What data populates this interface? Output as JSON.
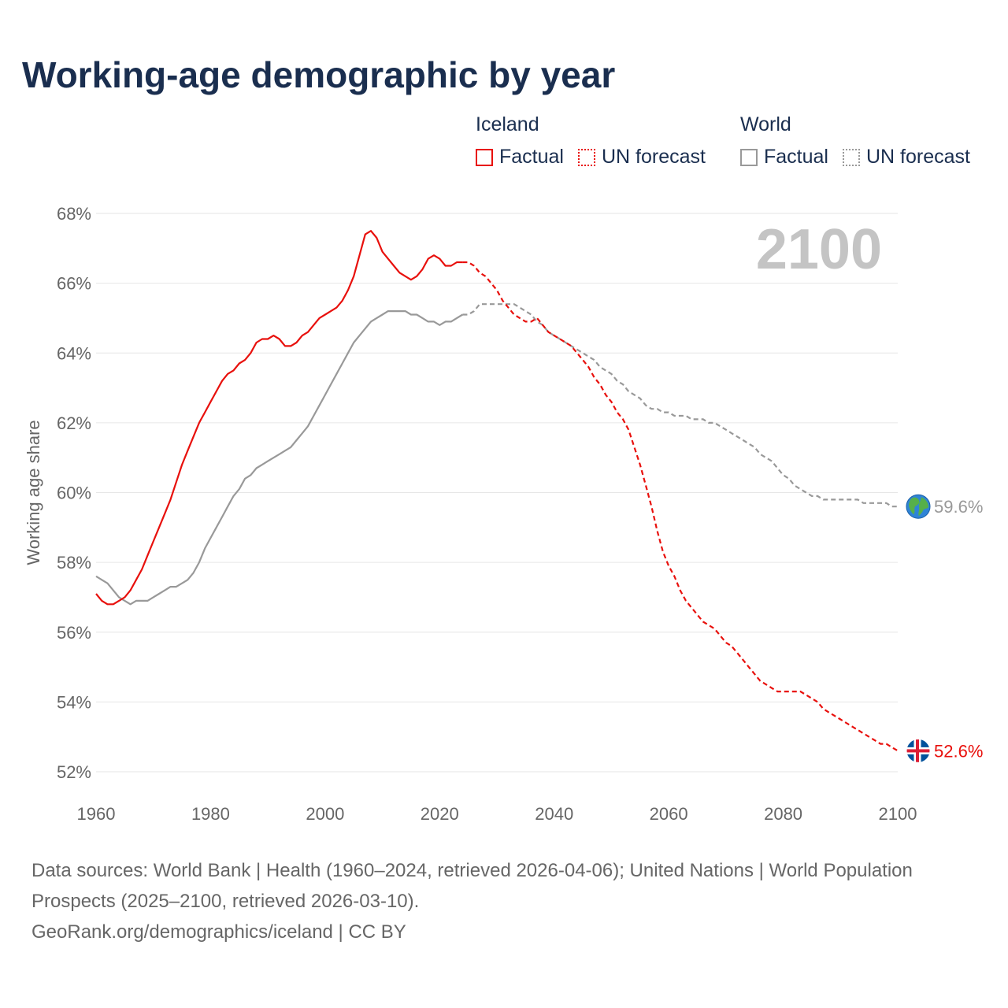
{
  "title": "Working-age demographic by year",
  "legend": {
    "iceland": {
      "title": "Iceland",
      "factual": "Factual",
      "forecast": "UN forecast"
    },
    "world": {
      "title": "World",
      "factual": "Factual",
      "forecast": "UN forecast"
    }
  },
  "colors": {
    "iceland": "#e8100c",
    "world": "#999999",
    "title": "#1a2e4f",
    "year": "#c4c4c4",
    "grid": "#e6e6e6"
  },
  "chart_data": {
    "type": "line",
    "title": "Working-age demographic by year",
    "xlabel": "",
    "ylabel": "Working age share",
    "xlim": [
      1960,
      2100
    ],
    "ylim": [
      52,
      68
    ],
    "x_ticks": [
      1960,
      1980,
      2000,
      2020,
      2040,
      2060,
      2080,
      2100
    ],
    "y_ticks": [
      52,
      54,
      56,
      58,
      60,
      62,
      64,
      66,
      68
    ],
    "y_tick_labels": [
      "52%",
      "54%",
      "56%",
      "58%",
      "60%",
      "62%",
      "64%",
      "66%",
      "68%"
    ],
    "current_year_label": "2100",
    "factual_range": [
      1960,
      2024
    ],
    "forecast_range": [
      2025,
      2100
    ],
    "series": [
      {
        "name": "Iceland",
        "end_label": "52.6%",
        "end_icon": "iceland-flag-icon",
        "factual": [
          [
            1960,
            57.1
          ],
          [
            1961,
            56.9
          ],
          [
            1962,
            56.8
          ],
          [
            1963,
            56.8
          ],
          [
            1964,
            56.9
          ],
          [
            1965,
            57.0
          ],
          [
            1966,
            57.2
          ],
          [
            1967,
            57.5
          ],
          [
            1968,
            57.8
          ],
          [
            1969,
            58.2
          ],
          [
            1970,
            58.6
          ],
          [
            1971,
            59.0
          ],
          [
            1972,
            59.4
          ],
          [
            1973,
            59.8
          ],
          [
            1974,
            60.3
          ],
          [
            1975,
            60.8
          ],
          [
            1976,
            61.2
          ],
          [
            1977,
            61.6
          ],
          [
            1978,
            62.0
          ],
          [
            1979,
            62.3
          ],
          [
            1980,
            62.6
          ],
          [
            1981,
            62.9
          ],
          [
            1982,
            63.2
          ],
          [
            1983,
            63.4
          ],
          [
            1984,
            63.5
          ],
          [
            1985,
            63.7
          ],
          [
            1986,
            63.8
          ],
          [
            1987,
            64.0
          ],
          [
            1988,
            64.3
          ],
          [
            1989,
            64.4
          ],
          [
            1990,
            64.4
          ],
          [
            1991,
            64.5
          ],
          [
            1992,
            64.4
          ],
          [
            1993,
            64.2
          ],
          [
            1994,
            64.2
          ],
          [
            1995,
            64.3
          ],
          [
            1996,
            64.5
          ],
          [
            1997,
            64.6
          ],
          [
            1998,
            64.8
          ],
          [
            1999,
            65.0
          ],
          [
            2000,
            65.1
          ],
          [
            2001,
            65.2
          ],
          [
            2002,
            65.3
          ],
          [
            2003,
            65.5
          ],
          [
            2004,
            65.8
          ],
          [
            2005,
            66.2
          ],
          [
            2006,
            66.8
          ],
          [
            2007,
            67.4
          ],
          [
            2008,
            67.5
          ],
          [
            2009,
            67.3
          ],
          [
            2010,
            66.9
          ],
          [
            2011,
            66.7
          ],
          [
            2012,
            66.5
          ],
          [
            2013,
            66.3
          ],
          [
            2014,
            66.2
          ],
          [
            2015,
            66.1
          ],
          [
            2016,
            66.2
          ],
          [
            2017,
            66.4
          ],
          [
            2018,
            66.7
          ],
          [
            2019,
            66.8
          ],
          [
            2020,
            66.7
          ],
          [
            2021,
            66.5
          ],
          [
            2022,
            66.5
          ],
          [
            2023,
            66.6
          ],
          [
            2024,
            66.6
          ]
        ],
        "forecast": [
          [
            2024,
            66.6
          ],
          [
            2025,
            66.6
          ],
          [
            2026,
            66.5
          ],
          [
            2027,
            66.3
          ],
          [
            2028,
            66.2
          ],
          [
            2029,
            66.0
          ],
          [
            2030,
            65.8
          ],
          [
            2031,
            65.5
          ],
          [
            2032,
            65.3
          ],
          [
            2033,
            65.1
          ],
          [
            2034,
            65.0
          ],
          [
            2035,
            64.9
          ],
          [
            2036,
            64.9
          ],
          [
            2037,
            65.0
          ],
          [
            2038,
            64.8
          ],
          [
            2039,
            64.6
          ],
          [
            2040,
            64.5
          ],
          [
            2041,
            64.4
          ],
          [
            2042,
            64.3
          ],
          [
            2043,
            64.2
          ],
          [
            2044,
            64.0
          ],
          [
            2045,
            63.8
          ],
          [
            2046,
            63.6
          ],
          [
            2047,
            63.3
          ],
          [
            2048,
            63.1
          ],
          [
            2049,
            62.8
          ],
          [
            2050,
            62.6
          ],
          [
            2051,
            62.3
          ],
          [
            2052,
            62.1
          ],
          [
            2053,
            61.8
          ],
          [
            2054,
            61.3
          ],
          [
            2055,
            60.8
          ],
          [
            2056,
            60.2
          ],
          [
            2057,
            59.6
          ],
          [
            2058,
            58.9
          ],
          [
            2059,
            58.3
          ],
          [
            2060,
            57.9
          ],
          [
            2061,
            57.6
          ],
          [
            2062,
            57.2
          ],
          [
            2063,
            56.9
          ],
          [
            2064,
            56.7
          ],
          [
            2065,
            56.5
          ],
          [
            2066,
            56.3
          ],
          [
            2067,
            56.2
          ],
          [
            2068,
            56.1
          ],
          [
            2069,
            55.9
          ],
          [
            2070,
            55.7
          ],
          [
            2071,
            55.6
          ],
          [
            2072,
            55.4
          ],
          [
            2073,
            55.2
          ],
          [
            2074,
            55.0
          ],
          [
            2075,
            54.8
          ],
          [
            2076,
            54.6
          ],
          [
            2077,
            54.5
          ],
          [
            2078,
            54.4
          ],
          [
            2079,
            54.3
          ],
          [
            2080,
            54.3
          ],
          [
            2081,
            54.3
          ],
          [
            2082,
            54.3
          ],
          [
            2083,
            54.3
          ],
          [
            2084,
            54.2
          ],
          [
            2085,
            54.1
          ],
          [
            2086,
            54.0
          ],
          [
            2087,
            53.8
          ],
          [
            2088,
            53.7
          ],
          [
            2089,
            53.6
          ],
          [
            2090,
            53.5
          ],
          [
            2091,
            53.4
          ],
          [
            2092,
            53.3
          ],
          [
            2093,
            53.2
          ],
          [
            2094,
            53.1
          ],
          [
            2095,
            53.0
          ],
          [
            2096,
            52.9
          ],
          [
            2097,
            52.8
          ],
          [
            2098,
            52.8
          ],
          [
            2099,
            52.7
          ],
          [
            2100,
            52.6
          ]
        ]
      },
      {
        "name": "World",
        "end_label": "59.6%",
        "end_icon": "globe-icon",
        "factual": [
          [
            1960,
            57.6
          ],
          [
            1961,
            57.5
          ],
          [
            1962,
            57.4
          ],
          [
            1963,
            57.2
          ],
          [
            1964,
            57.0
          ],
          [
            1965,
            56.9
          ],
          [
            1966,
            56.8
          ],
          [
            1967,
            56.9
          ],
          [
            1968,
            56.9
          ],
          [
            1969,
            56.9
          ],
          [
            1970,
            57.0
          ],
          [
            1971,
            57.1
          ],
          [
            1972,
            57.2
          ],
          [
            1973,
            57.3
          ],
          [
            1974,
            57.3
          ],
          [
            1975,
            57.4
          ],
          [
            1976,
            57.5
          ],
          [
            1977,
            57.7
          ],
          [
            1978,
            58.0
          ],
          [
            1979,
            58.4
          ],
          [
            1980,
            58.7
          ],
          [
            1981,
            59.0
          ],
          [
            1982,
            59.3
          ],
          [
            1983,
            59.6
          ],
          [
            1984,
            59.9
          ],
          [
            1985,
            60.1
          ],
          [
            1986,
            60.4
          ],
          [
            1987,
            60.5
          ],
          [
            1988,
            60.7
          ],
          [
            1989,
            60.8
          ],
          [
            1990,
            60.9
          ],
          [
            1991,
            61.0
          ],
          [
            1992,
            61.1
          ],
          [
            1993,
            61.2
          ],
          [
            1994,
            61.3
          ],
          [
            1995,
            61.5
          ],
          [
            1996,
            61.7
          ],
          [
            1997,
            61.9
          ],
          [
            1998,
            62.2
          ],
          [
            1999,
            62.5
          ],
          [
            2000,
            62.8
          ],
          [
            2001,
            63.1
          ],
          [
            2002,
            63.4
          ],
          [
            2003,
            63.7
          ],
          [
            2004,
            64.0
          ],
          [
            2005,
            64.3
          ],
          [
            2006,
            64.5
          ],
          [
            2007,
            64.7
          ],
          [
            2008,
            64.9
          ],
          [
            2009,
            65.0
          ],
          [
            2010,
            65.1
          ],
          [
            2011,
            65.2
          ],
          [
            2012,
            65.2
          ],
          [
            2013,
            65.2
          ],
          [
            2014,
            65.2
          ],
          [
            2015,
            65.1
          ],
          [
            2016,
            65.1
          ],
          [
            2017,
            65.0
          ],
          [
            2018,
            64.9
          ],
          [
            2019,
            64.9
          ],
          [
            2020,
            64.8
          ],
          [
            2021,
            64.9
          ],
          [
            2022,
            64.9
          ],
          [
            2023,
            65.0
          ],
          [
            2024,
            65.1
          ]
        ],
        "forecast": [
          [
            2024,
            65.1
          ],
          [
            2025,
            65.1
          ],
          [
            2026,
            65.2
          ],
          [
            2027,
            65.4
          ],
          [
            2028,
            65.4
          ],
          [
            2029,
            65.4
          ],
          [
            2030,
            65.4
          ],
          [
            2031,
            65.4
          ],
          [
            2032,
            65.4
          ],
          [
            2033,
            65.4
          ],
          [
            2034,
            65.3
          ],
          [
            2035,
            65.2
          ],
          [
            2036,
            65.1
          ],
          [
            2037,
            64.9
          ],
          [
            2038,
            64.8
          ],
          [
            2039,
            64.6
          ],
          [
            2040,
            64.5
          ],
          [
            2041,
            64.4
          ],
          [
            2042,
            64.3
          ],
          [
            2043,
            64.2
          ],
          [
            2044,
            64.1
          ],
          [
            2045,
            64.0
          ],
          [
            2046,
            63.9
          ],
          [
            2047,
            63.8
          ],
          [
            2048,
            63.6
          ],
          [
            2049,
            63.5
          ],
          [
            2050,
            63.4
          ],
          [
            2051,
            63.2
          ],
          [
            2052,
            63.1
          ],
          [
            2053,
            62.9
          ],
          [
            2054,
            62.8
          ],
          [
            2055,
            62.7
          ],
          [
            2056,
            62.5
          ],
          [
            2057,
            62.4
          ],
          [
            2058,
            62.4
          ],
          [
            2059,
            62.3
          ],
          [
            2060,
            62.3
          ],
          [
            2061,
            62.2
          ],
          [
            2062,
            62.2
          ],
          [
            2063,
            62.2
          ],
          [
            2064,
            62.1
          ],
          [
            2065,
            62.1
          ],
          [
            2066,
            62.1
          ],
          [
            2067,
            62.0
          ],
          [
            2068,
            62.0
          ],
          [
            2069,
            61.9
          ],
          [
            2070,
            61.8
          ],
          [
            2071,
            61.7
          ],
          [
            2072,
            61.6
          ],
          [
            2073,
            61.5
          ],
          [
            2074,
            61.4
          ],
          [
            2075,
            61.3
          ],
          [
            2076,
            61.1
          ],
          [
            2077,
            61.0
          ],
          [
            2078,
            60.9
          ],
          [
            2079,
            60.7
          ],
          [
            2080,
            60.5
          ],
          [
            2081,
            60.4
          ],
          [
            2082,
            60.2
          ],
          [
            2083,
            60.1
          ],
          [
            2084,
            60.0
          ],
          [
            2085,
            59.9
          ],
          [
            2086,
            59.9
          ],
          [
            2087,
            59.8
          ],
          [
            2088,
            59.8
          ],
          [
            2089,
            59.8
          ],
          [
            2090,
            59.8
          ],
          [
            2091,
            59.8
          ],
          [
            2092,
            59.8
          ],
          [
            2093,
            59.8
          ],
          [
            2094,
            59.7
          ],
          [
            2095,
            59.7
          ],
          [
            2096,
            59.7
          ],
          [
            2097,
            59.7
          ],
          [
            2098,
            59.7
          ],
          [
            2099,
            59.6
          ],
          [
            2100,
            59.6
          ]
        ]
      }
    ]
  },
  "footer": {
    "sources": "Data sources: World Bank | Health (1960–2024, retrieved 2026-04-06); United Nations | World Population Prospects (2025–2100, retrieved 2026-03-10).",
    "credit": "GeoRank.org/demographics/iceland | CC BY"
  }
}
